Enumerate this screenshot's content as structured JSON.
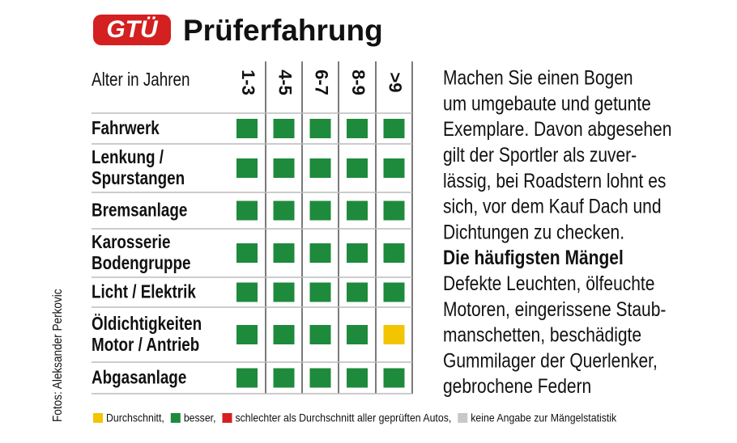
{
  "header": {
    "logo": "GTÜ",
    "title": "Prüferfahrung"
  },
  "table": {
    "axis_label": "Alter in Jahren",
    "columns": [
      "1-3",
      "4-5",
      "6-7",
      "8-9",
      ">9"
    ],
    "rows": [
      {
        "label": [
          "Fahrwerk"
        ],
        "cells": [
          "#1e8a3c",
          "#1e8a3c",
          "#1e8a3c",
          "#1e8a3c",
          "#1e8a3c"
        ]
      },
      {
        "label": [
          "Lenkung /",
          "Spurstangen"
        ],
        "cells": [
          "#1e8a3c",
          "#1e8a3c",
          "#1e8a3c",
          "#1e8a3c",
          "#1e8a3c"
        ]
      },
      {
        "label": [
          "Bremsanlage"
        ],
        "cells": [
          "#1e8a3c",
          "#1e8a3c",
          "#1e8a3c",
          "#1e8a3c",
          "#1e8a3c"
        ]
      },
      {
        "label": [
          "Karosserie",
          "Bodengruppe"
        ],
        "cells": [
          "#1e8a3c",
          "#1e8a3c",
          "#1e8a3c",
          "#1e8a3c",
          "#1e8a3c"
        ]
      },
      {
        "label": [
          "Licht / Elektrik"
        ],
        "cells": [
          "#1e8a3c",
          "#1e8a3c",
          "#1e8a3c",
          "#1e8a3c",
          "#1e8a3c"
        ]
      },
      {
        "label": [
          "Öldichtigkeiten",
          "Motor / Antrieb"
        ],
        "cells": [
          "#1e8a3c",
          "#1e8a3c",
          "#1e8a3c",
          "#1e8a3c",
          "#f2c500"
        ]
      },
      {
        "label": [
          "Abgasanlage"
        ],
        "cells": [
          "#1e8a3c",
          "#1e8a3c",
          "#1e8a3c",
          "#1e8a3c",
          "#1e8a3c"
        ]
      }
    ]
  },
  "legend": [
    {
      "name": "Durchschnitt,",
      "color": "#f2c500"
    },
    {
      "name": "besser,",
      "color": "#1e8a3c"
    },
    {
      "name": "schlechter als Durchschnitt aller geprüften Autos,",
      "color": "#d42020"
    },
    {
      "name": "keine Angabe zur Mängelstatistik",
      "color": "#c8c8c8"
    }
  ],
  "text": {
    "intro": [
      "Machen Sie einen Bogen",
      "um umgebaute und getunte",
      "Exemplare. Davon abgesehen",
      "gilt der Sportler als zuver-",
      "lässig, bei Roadstern lohnt es",
      "sich, vor dem Kauf Dach und",
      "Dichtungen zu checken."
    ],
    "heading": "Die häufigsten Mängel",
    "body": [
      "Defekte Leuchten, ölfeuchte",
      "Motoren, eingerissene Staub-",
      "manschetten, beschädigte",
      "Gummilager der Querlenker,",
      "gebrochene Federn"
    ]
  },
  "credit": "Fotos: Aleksander Perkovic"
}
